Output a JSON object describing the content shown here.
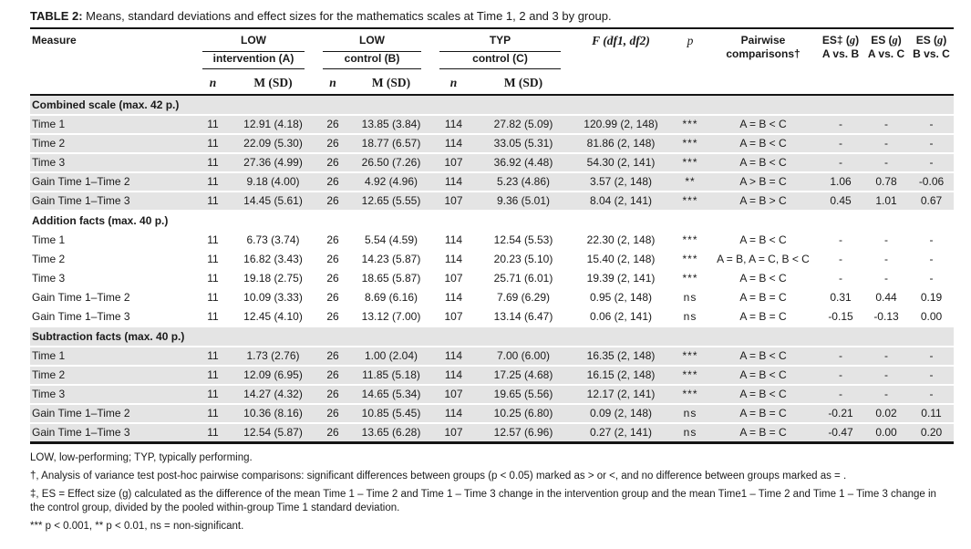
{
  "title": {
    "label": "TABLE 2:",
    "text": " Means, standard deviations and effect sizes for the mathematics scales at Time 1, 2 and 3 by group."
  },
  "colors": {
    "row_shade": "#e4e4e4",
    "rule": "#151515",
    "text": "#1a1a1a"
  },
  "header": {
    "measure": "Measure",
    "groups": [
      {
        "line1": "LOW",
        "line2": "intervention (A)"
      },
      {
        "line1": "LOW",
        "line2": "control (B)"
      },
      {
        "line1": "TYP",
        "line2": "control (C)"
      }
    ],
    "n_label": "n",
    "msd_label": "M (SD)",
    "f_label": "F (df1, df2)",
    "p_label": "p",
    "pairwise_line1": "Pairwise",
    "pairwise_line2": "comparisons†",
    "es_headers": [
      {
        "pre": "ES‡ (",
        "g": "g",
        "post": ")",
        "sub": "A vs. B"
      },
      {
        "pre": "ES (",
        "g": "g",
        "post": ")",
        "sub": "A vs. C"
      },
      {
        "pre": "ES (",
        "g": "g",
        "post": ")",
        "sub": "B vs. C"
      }
    ]
  },
  "sections": [
    {
      "name": "Combined scale (max. 42 p.)",
      "shaded": true,
      "rows": [
        {
          "cells": [
            "Time 1",
            "11",
            "12.91 (4.18)",
            "26",
            "13.85 (3.84)",
            "114",
            "27.82 (5.09)",
            "120.99 (2, 148)",
            "***",
            "A = B < C",
            "-",
            "-",
            "-"
          ]
        },
        {
          "cells": [
            "Time 2",
            "11",
            "22.09 (5.30)",
            "26",
            "18.77 (6.57)",
            "114",
            "33.05 (5.31)",
            "81.86 (2, 148)",
            "***",
            "A = B < C",
            "-",
            "-",
            "-"
          ]
        },
        {
          "cells": [
            "Time 3",
            "11",
            "27.36 (4.99)",
            "26",
            "26.50 (7.26)",
            "107",
            "36.92 (4.48)",
            "54.30 (2, 141)",
            "***",
            "A = B < C",
            "-",
            "-",
            "-"
          ]
        },
        {
          "cells": [
            "Gain Time 1–Time 2",
            "11",
            "9.18 (4.00)",
            "26",
            "4.92 (4.96)",
            "114",
            "5.23 (4.86)",
            "3.57 (2, 148)",
            "**",
            "A > B = C",
            "1.06",
            "0.78",
            "-0.06"
          ]
        },
        {
          "cells": [
            "Gain Time 1–Time 3",
            "11",
            "14.45 (5.61)",
            "26",
            "12.65 (5.55)",
            "107",
            "9.36 (5.01)",
            "8.04 (2, 141)",
            "***",
            "A = B > C",
            "0.45",
            "1.01",
            "0.67"
          ]
        }
      ]
    },
    {
      "name": "Addition facts (max. 40 p.)",
      "shaded": false,
      "rows": [
        {
          "cells": [
            "Time 1",
            "11",
            "6.73 (3.74)",
            "26",
            "5.54 (4.59)",
            "114",
            "12.54 (5.53)",
            "22.30 (2, 148)",
            "***",
            "A = B < C",
            "-",
            "-",
            "-"
          ]
        },
        {
          "cells": [
            "Time 2",
            "11",
            "16.82 (3.43)",
            "26",
            "14.23 (5.87)",
            "114",
            "20.23 (5.10)",
            "15.40 (2, 148)",
            "***",
            "A = B, A = C, B < C",
            "-",
            "-",
            "-"
          ]
        },
        {
          "cells": [
            "Time 3",
            "11",
            "19.18 (2.75)",
            "26",
            "18.65 (5.87)",
            "107",
            "25.71 (6.01)",
            "19.39 (2, 141)",
            "***",
            "A = B < C",
            "-",
            "-",
            "-"
          ]
        },
        {
          "cells": [
            "Gain Time 1–Time 2",
            "11",
            "10.09 (3.33)",
            "26",
            "8.69 (6.16)",
            "114",
            "7.69 (6.29)",
            "0.95 (2, 148)",
            "ns",
            "A = B = C",
            "0.31",
            "0.44",
            "0.19"
          ]
        },
        {
          "cells": [
            "Gain Time 1–Time 3",
            "11",
            "12.45 (4.10)",
            "26",
            "13.12 (7.00)",
            "107",
            "13.14 (6.47)",
            "0.06 (2, 141)",
            "ns",
            "A = B = C",
            "-0.15",
            "-0.13",
            "0.00"
          ]
        }
      ]
    },
    {
      "name": "Subtraction facts (max. 40 p.)",
      "shaded": true,
      "rows": [
        {
          "cells": [
            "Time 1",
            "11",
            "1.73 (2.76)",
            "26",
            "1.00 (2.04)",
            "114",
            "7.00 (6.00)",
            "16.35 (2, 148)",
            "***",
            "A = B < C",
            "-",
            "-",
            "-"
          ]
        },
        {
          "cells": [
            "Time 2",
            "11",
            "12.09 (6.95)",
            "26",
            "11.85 (5.18)",
            "114",
            "17.25 (4.68)",
            "16.15 (2, 148)",
            "***",
            "A = B < C",
            "-",
            "-",
            "-"
          ]
        },
        {
          "cells": [
            "Time 3",
            "11",
            "14.27 (4.32)",
            "26",
            "14.65 (5.34)",
            "107",
            "19.65 (5.56)",
            "12.17 (2, 141)",
            "***",
            "A = B < C",
            "-",
            "-",
            "-"
          ]
        },
        {
          "cells": [
            "Gain Time 1–Time 2",
            "11",
            "10.36 (8.16)",
            "26",
            "10.85 (5.45)",
            "114",
            "10.25 (6.80)",
            "0.09 (2, 148)",
            "ns",
            "A = B = C",
            "-0.21",
            "0.02",
            "0.11"
          ]
        },
        {
          "cells": [
            "Gain Time 1–Time 3",
            "11",
            "12.54 (5.87)",
            "26",
            "13.65 (6.28)",
            "107",
            "12.57 (6.96)",
            "0.27 (2, 141)",
            "ns",
            "A = B = C",
            "-0.47",
            "0.00",
            "0.20"
          ]
        }
      ]
    }
  ],
  "footnotes": [
    "LOW, low-performing; TYP, typically performing.",
    "†, Analysis of variance test post-hoc pairwise comparisons: significant differences between groups (p < 0.05) marked as > or <, and no difference between groups marked as = .",
    "‡, ES = Effect size (g) calculated as the difference of the mean Time 1 – Time 2 and Time 1 – Time 3 change in the intervention group and the mean Time1 – Time 2 and Time 1 – Time 3 change in the control group, divided by the pooled within-group Time 1 standard deviation.",
    "*** p < 0.001, ** p < 0.01, ns = non-significant."
  ]
}
